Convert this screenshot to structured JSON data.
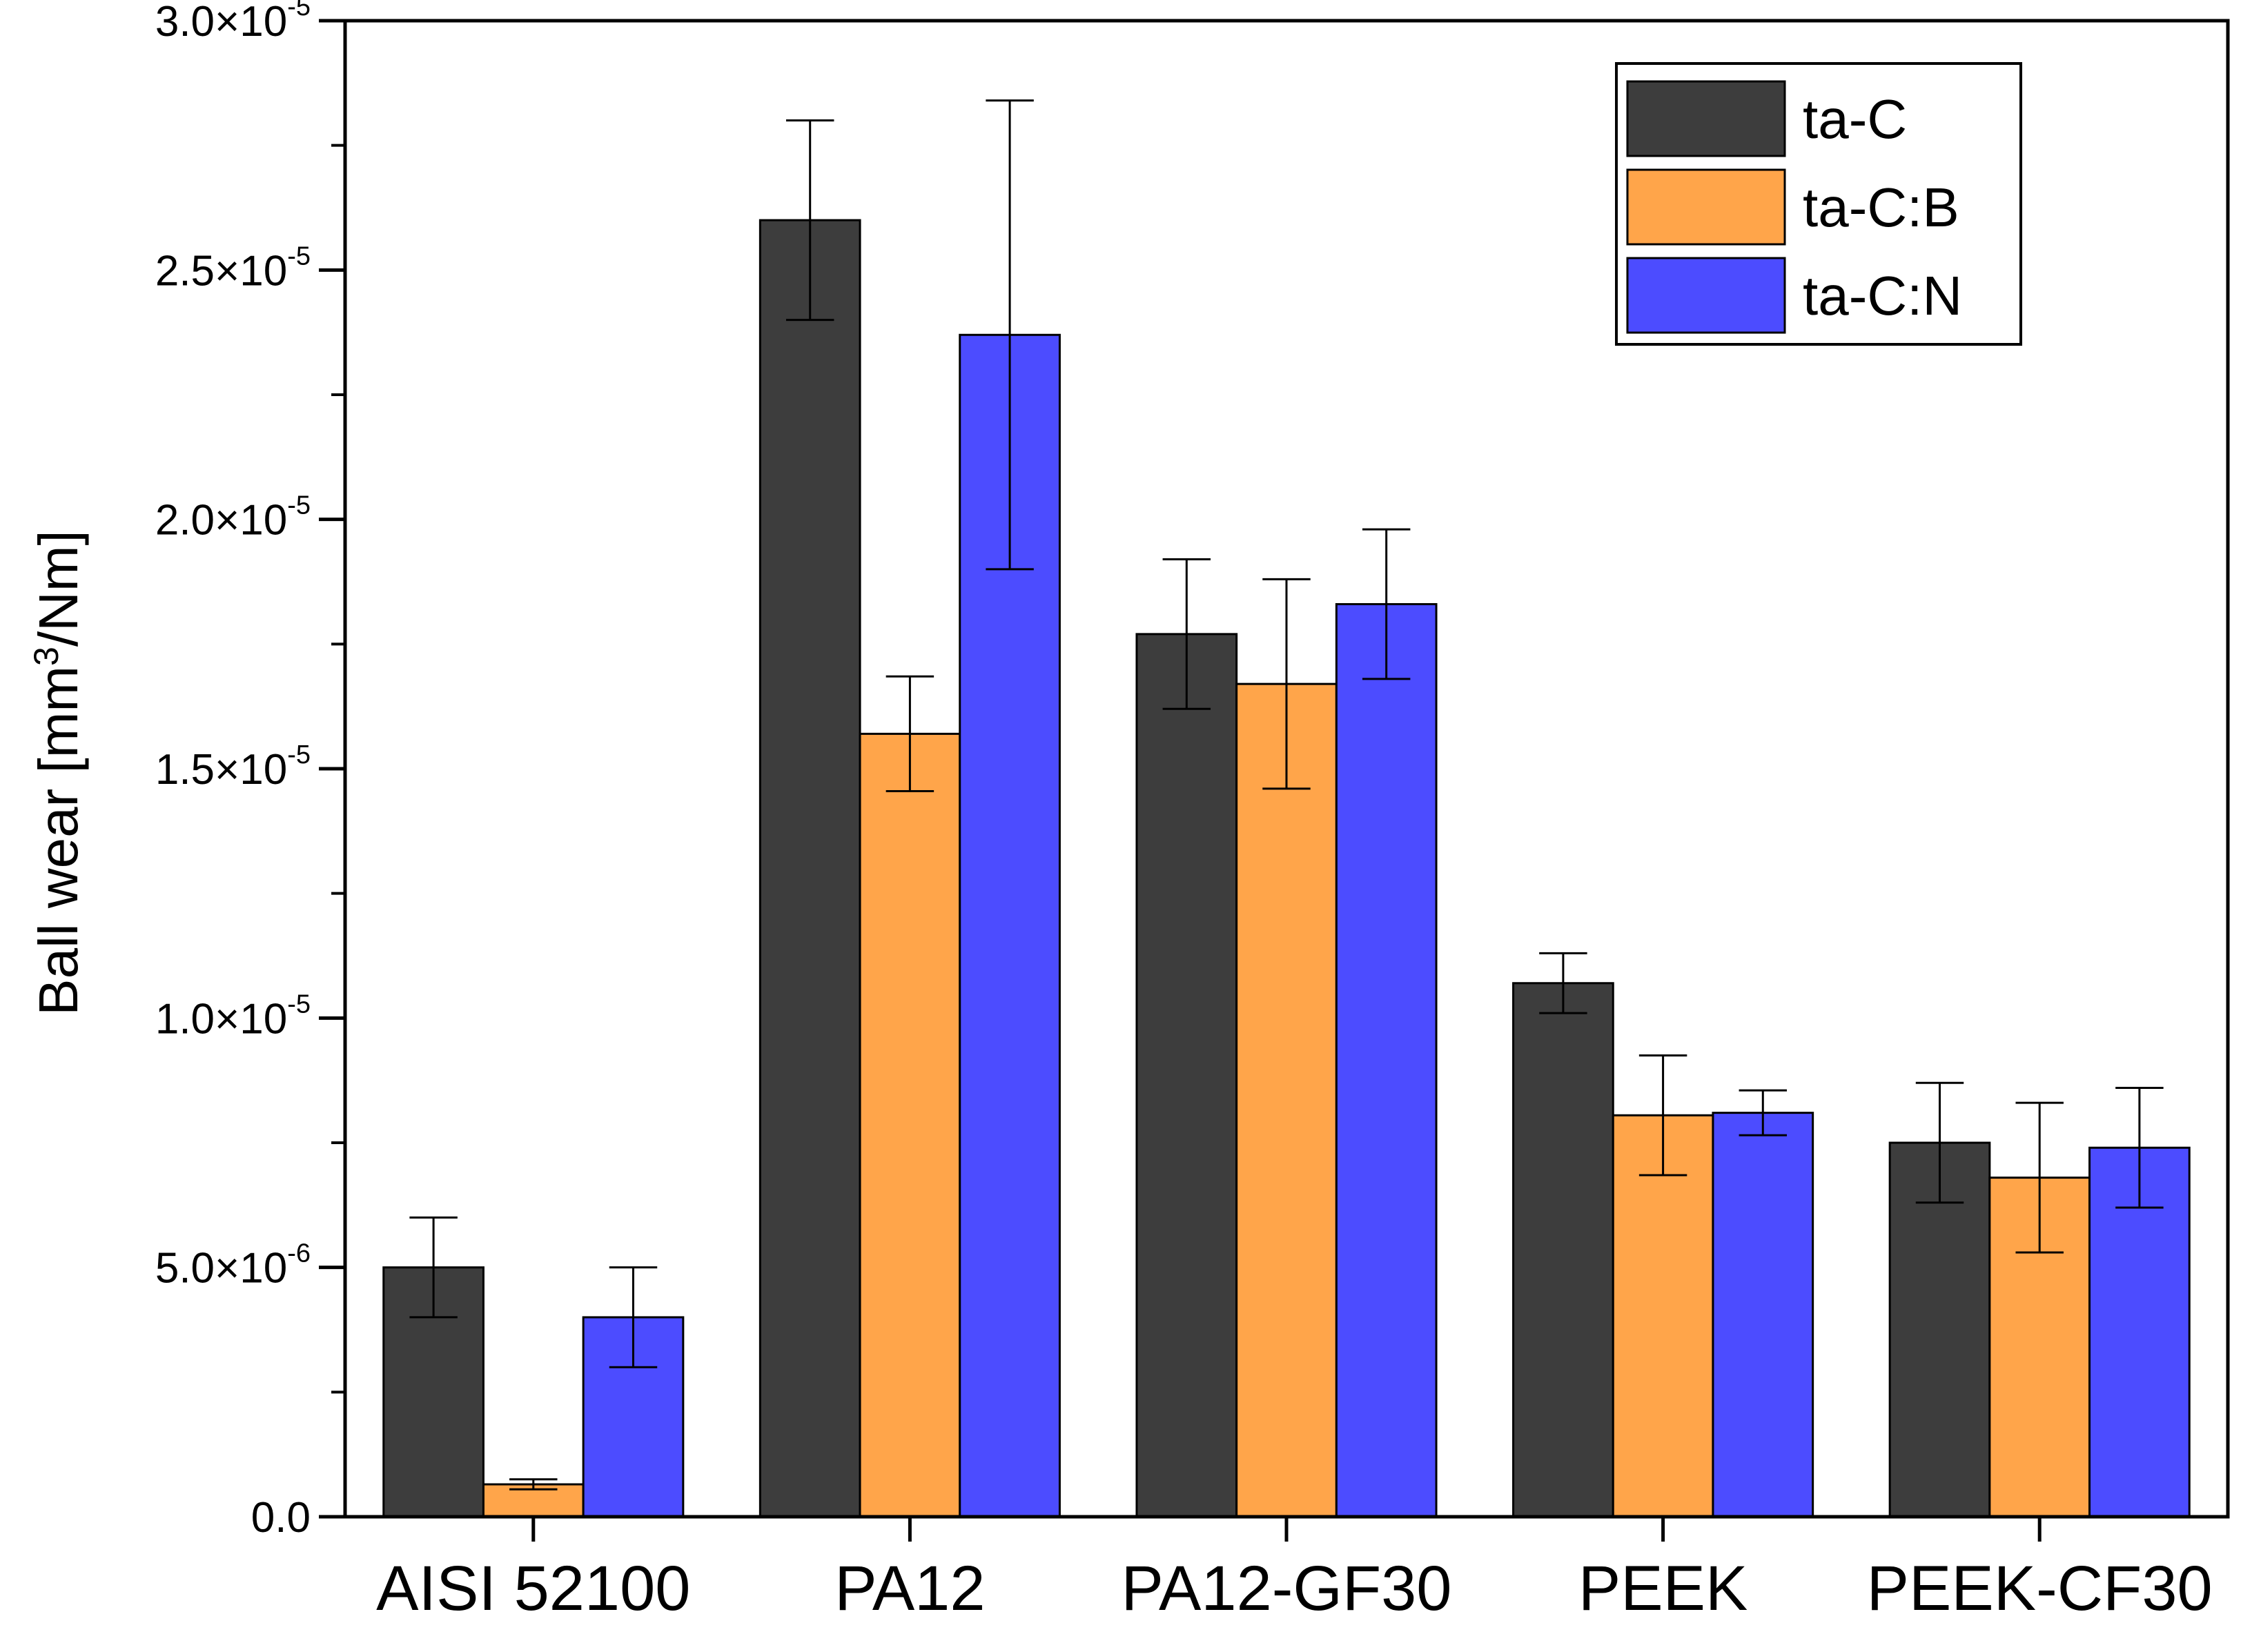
{
  "chart_data": {
    "type": "bar",
    "title": "",
    "xlabel": "",
    "ylabel": "Ball wear [mm³/Nm]",
    "ylabel_parts": {
      "before": "Ball wear [mm",
      "sup": "3",
      "after": "/Nm]"
    },
    "ylim": [
      0,
      3e-05
    ],
    "grid": false,
    "legend_position": "top-right",
    "categories": [
      "AISI 52100",
      "PA12",
      "PA12-GF30",
      "PEEK",
      "PEEK-CF30"
    ],
    "series": [
      {
        "name": "ta-C",
        "color": "#3d3d3d",
        "values": [
          5e-06,
          2.6e-05,
          1.77e-05,
          1.07e-05,
          7.5e-06
        ],
        "errors": [
          1e-06,
          2e-06,
          1.5e-06,
          6e-07,
          1.2e-06
        ]
      },
      {
        "name": "ta-C:B",
        "color": "#ffa54a",
        "values": [
          6.5e-07,
          1.57e-05,
          1.67e-05,
          8.05e-06,
          6.8e-06
        ],
        "errors": [
          1e-07,
          1.15e-06,
          2.1e-06,
          1.2e-06,
          1.5e-06
        ]
      },
      {
        "name": "ta-C:N",
        "color": "#4c4cff",
        "values": [
          4e-06,
          2.37e-05,
          1.83e-05,
          8.1e-06,
          7.4e-06
        ],
        "errors": [
          1e-06,
          4.7e-06,
          1.5e-06,
          4.5e-07,
          1.2e-06
        ]
      }
    ],
    "y_ticks": [
      {
        "value": 0,
        "mantissa": "0.0",
        "exponent": ""
      },
      {
        "value": 5e-06,
        "mantissa": "5.0×10",
        "exponent": "-6"
      },
      {
        "value": 1e-05,
        "mantissa": "1.0×10",
        "exponent": "-5"
      },
      {
        "value": 1.5e-05,
        "mantissa": "1.5×10",
        "exponent": "-5"
      },
      {
        "value": 2e-05,
        "mantissa": "2.0×10",
        "exponent": "-5"
      },
      {
        "value": 2.5e-05,
        "mantissa": "2.5×10",
        "exponent": "-5"
      },
      {
        "value": 3e-05,
        "mantissa": "3.0×10",
        "exponent": "-5"
      }
    ]
  }
}
